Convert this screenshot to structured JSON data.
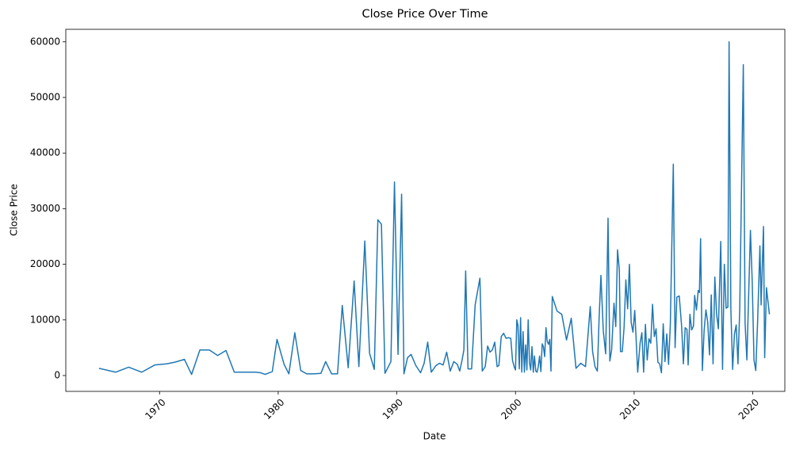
{
  "chart_data": {
    "type": "line",
    "title": "Close Price Over Time",
    "xlabel": "Date",
    "ylabel": "Close Price",
    "color": "#1f77b4",
    "xlim": [
      1962.1,
      2022.7
    ],
    "ylim": [
      -2850,
      62250
    ],
    "xticks": [
      1970,
      1980,
      1990,
      2000,
      2010,
      2020
    ],
    "yticks": [
      0,
      10000,
      20000,
      30000,
      40000,
      50000,
      60000
    ],
    "grid": false,
    "x": [
      1964.9,
      1966.3,
      1967.4,
      1968.5,
      1969.6,
      1970.6,
      1971.3,
      1972.1,
      1972.7,
      1973.4,
      1974.2,
      1974.9,
      1975.6,
      1976.3,
      1977.3,
      1978.1,
      1978.5,
      1978.9,
      1979.5,
      1979.9,
      1980.5,
      1980.9,
      1981.4,
      1981.9,
      1982.4,
      1983.0,
      1983.6,
      1984.0,
      1984.5,
      1985.0,
      1985.4,
      1985.9,
      1986.4,
      1986.8,
      1987.3,
      1987.7,
      1988.1,
      1988.4,
      1988.7,
      1989.0,
      1989.5,
      1989.8,
      1990.1,
      1990.4,
      1990.6,
      1990.9,
      1991.2,
      1991.6,
      1992.0,
      1992.3,
      1992.6,
      1992.9,
      1993.3,
      1993.6,
      1993.9,
      1994.2,
      1994.5,
      1994.8,
      1995.1,
      1995.3,
      1995.5,
      1995.65,
      1995.8,
      1996.0,
      1996.3,
      1996.6,
      1997.0,
      1997.2,
      1997.45,
      1997.65,
      1997.85,
      1998.05,
      1998.25,
      1998.45,
      1998.6,
      1998.8,
      1999.0,
      1999.2,
      1999.4,
      1999.6,
      1999.75,
      1999.9,
      2000.0,
      2000.11,
      2000.21,
      2000.32,
      2000.43,
      2000.53,
      2000.64,
      2000.75,
      2000.86,
      2000.96,
      2001.07,
      2001.18,
      2001.28,
      2001.39,
      2001.5,
      2001.6,
      2001.71,
      2001.82,
      2001.92,
      2002.03,
      2002.14,
      2002.25,
      2002.35,
      2002.46,
      2002.57,
      2002.67,
      2002.78,
      2002.89,
      2002.99,
      2003.1,
      2003.5,
      2003.9,
      2004.3,
      2004.7,
      2005.1,
      2005.5,
      2005.9,
      2006.3,
      2006.5,
      2006.7,
      2006.9,
      2007.05,
      2007.2,
      2007.4,
      2007.6,
      2007.8,
      2007.95,
      2008.1,
      2008.3,
      2008.45,
      2008.6,
      2008.75,
      2008.85,
      2009.0,
      2009.15,
      2009.3,
      2009.45,
      2009.6,
      2009.75,
      2009.9,
      2010.05,
      2010.3,
      2010.5,
      2010.65,
      2010.8,
      2010.95,
      2011.1,
      2011.25,
      2011.4,
      2011.55,
      2011.7,
      2011.85,
      2012.0,
      2012.15,
      2012.3,
      2012.45,
      2012.6,
      2012.75,
      2012.9,
      2013.05,
      2013.3,
      2013.45,
      2013.6,
      2013.8,
      2014.0,
      2014.15,
      2014.3,
      2014.45,
      2014.55,
      2014.7,
      2014.85,
      2015.0,
      2015.1,
      2015.25,
      2015.4,
      2015.5,
      2015.6,
      2015.75,
      2015.9,
      2016.05,
      2016.2,
      2016.35,
      2016.5,
      2016.65,
      2016.8,
      2016.95,
      2017.1,
      2017.3,
      2017.45,
      2017.6,
      2017.75,
      2017.9,
      2018.0,
      2018.15,
      2018.3,
      2018.45,
      2018.6,
      2018.75,
      2018.9,
      2019.2,
      2019.35,
      2019.5,
      2019.8,
      2019.95,
      2020.1,
      2020.25,
      2020.4,
      2020.6,
      2020.7,
      2020.9,
      2021.0,
      2021.15,
      2021.4
    ],
    "values": [
      1300,
      600,
      1500,
      600,
      1900,
      2100,
      2400,
      2900,
      200,
      4600,
      4600,
      3600,
      4500,
      600,
      600,
      600,
      500,
      200,
      700,
      6500,
      2000,
      300,
      7700,
      900,
      300,
      300,
      400,
      2500,
      300,
      300,
      12600,
      1400,
      17000,
      1600,
      24200,
      4000,
      1100,
      28000,
      27200,
      400,
      2500,
      34800,
      3800,
      32600,
      300,
      3200,
      3800,
      1800,
      500,
      2200,
      6000,
      600,
      1800,
      2200,
      1900,
      4200,
      800,
      2500,
      2000,
      800,
      2800,
      4600,
      18800,
      1200,
      1200,
      12700,
      17500,
      800,
      1600,
      5300,
      4200,
      4600,
      6000,
      1600,
      1800,
      7000,
      7600,
      6700,
      6800,
      6700,
      2700,
      1500,
      1000,
      10000,
      9000,
      1200,
      10400,
      600,
      7900,
      600,
      5500,
      1000,
      10000,
      2300,
      1000,
      5200,
      600,
      3500,
      800,
      600,
      1600,
      3500,
      700,
      5700,
      5200,
      3400,
      8600,
      6200,
      5600,
      6500,
      800,
      14200,
      11600,
      11000,
      6400,
      10300,
      1300,
      2200,
      1600,
      12400,
      4300,
      1600,
      800,
      10500,
      18000,
      8000,
      3900,
      28300,
      2600,
      4600,
      13000,
      8800,
      22600,
      19000,
      4300,
      4300,
      8600,
      17200,
      12000,
      20000,
      9500,
      7800,
      11700,
      600,
      5800,
      7700,
      600,
      9200,
      2800,
      6600,
      5800,
      12800,
      7000,
      8400,
      2400,
      2100,
      500,
      9300,
      2500,
      7500,
      2000,
      9200,
      38000,
      5000,
      14100,
      14300,
      8900,
      2100,
      8600,
      8300,
      1900,
      11000,
      8200,
      8900,
      14400,
      11800,
      15300,
      14900,
      24600,
      900,
      8200,
      11800,
      9600,
      3700,
      14500,
      2100,
      17700,
      11000,
      8400,
      24100,
      1100,
      20000,
      12100,
      12300,
      60000,
      12000,
      1100,
      7400,
      9100,
      2100,
      12000,
      55900,
      9400,
      2800,
      26100,
      17000,
      2800,
      900,
      9400,
      23300,
      12700,
      26800,
      3200,
      15800,
      11000
    ]
  }
}
